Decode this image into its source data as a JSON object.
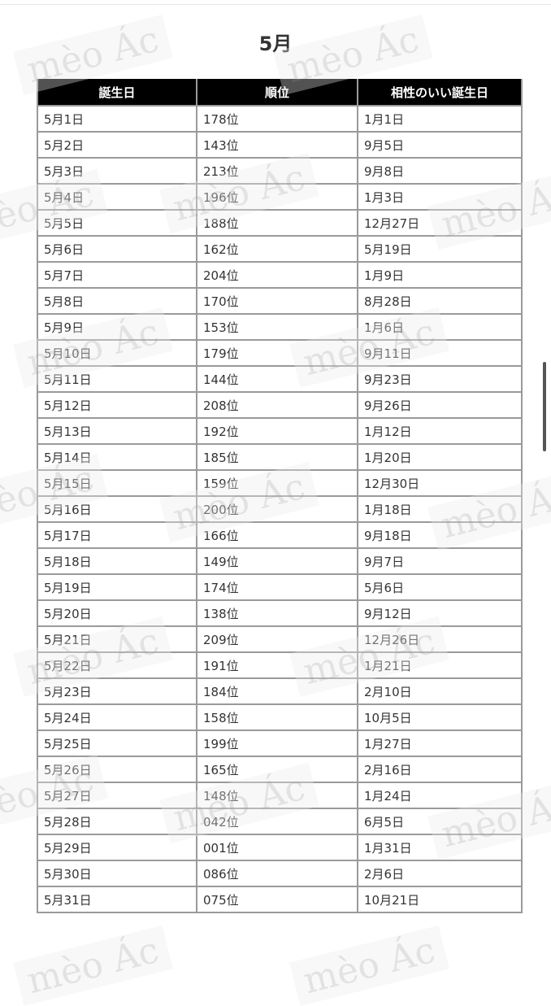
{
  "title": "5月",
  "watermark": "mèo Ác",
  "table": {
    "headers": [
      "誕生日",
      "順位",
      "相性のいい誕生日"
    ],
    "rows": [
      [
        "5月1日",
        "178位",
        "1月1日"
      ],
      [
        "5月2日",
        "143位",
        "9月5日"
      ],
      [
        "5月3日",
        "213位",
        "9月8日"
      ],
      [
        "5月4日",
        "196位",
        "1月3日"
      ],
      [
        "5月5日",
        "188位",
        "12月27日"
      ],
      [
        "5月6日",
        "162位",
        "5月19日"
      ],
      [
        "5月7日",
        "204位",
        "1月9日"
      ],
      [
        "5月8日",
        "170位",
        "8月28日"
      ],
      [
        "5月9日",
        "153位",
        "1月6日"
      ],
      [
        "5月10日",
        "179位",
        "9月11日"
      ],
      [
        "5月11日",
        "144位",
        "9月23日"
      ],
      [
        "5月12日",
        "208位",
        "9月26日"
      ],
      [
        "5月13日",
        "192位",
        "1月12日"
      ],
      [
        "5月14日",
        "185位",
        "1月20日"
      ],
      [
        "5月15日",
        "159位",
        "12月30日"
      ],
      [
        "5月16日",
        "200位",
        "1月18日"
      ],
      [
        "5月17日",
        "166位",
        "9月18日"
      ],
      [
        "5月18日",
        "149位",
        "9月7日"
      ],
      [
        "5月19日",
        "174位",
        "5月6日"
      ],
      [
        "5月20日",
        "138位",
        "9月12日"
      ],
      [
        "5月21日",
        "209位",
        "12月26日"
      ],
      [
        "5月22日",
        "191位",
        "1月21日"
      ],
      [
        "5月23日",
        "184位",
        "2月10日"
      ],
      [
        "5月24日",
        "158位",
        "10月5日"
      ],
      [
        "5月25日",
        "199位",
        "1月27日"
      ],
      [
        "5月26日",
        "165位",
        "2月16日"
      ],
      [
        "5月27日",
        "148位",
        "1月24日"
      ],
      [
        "5月28日",
        "042位",
        "6月5日"
      ],
      [
        "5月29日",
        "001位",
        "1月31日"
      ],
      [
        "5月30日",
        "086位",
        "2月6日"
      ],
      [
        "5月31日",
        "075位",
        "10月21日"
      ]
    ]
  }
}
